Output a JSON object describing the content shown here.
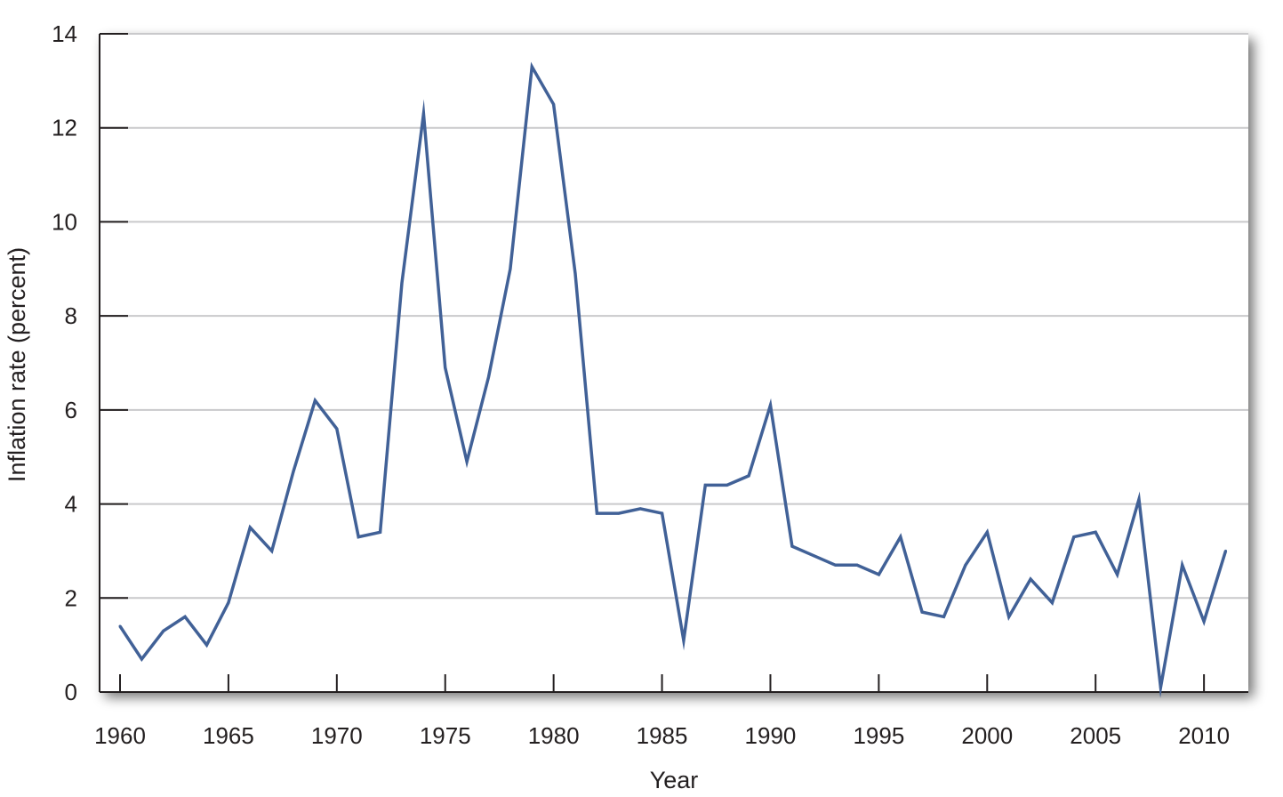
{
  "chart_data": {
    "type": "line",
    "title": "",
    "xlabel": "Year",
    "ylabel": "Inflation rate (percent)",
    "xlim": [
      1960,
      2011
    ],
    "ylim": [
      0,
      14
    ],
    "x_ticks": [
      1960,
      1965,
      1970,
      1975,
      1980,
      1985,
      1990,
      1995,
      2000,
      2005,
      2010
    ],
    "y_ticks": [
      0,
      2,
      4,
      6,
      8,
      10,
      12,
      14
    ],
    "grid": "horizontal",
    "legend": "none",
    "colors": {
      "line": "#416197",
      "grid": "#c9c9cb",
      "axis": "#231f20",
      "plot_background": "#ffffff",
      "shadow": "#888888"
    },
    "series": [
      {
        "x": [
          1960,
          1961,
          1962,
          1963,
          1964,
          1965,
          1966,
          1967,
          1968,
          1969,
          1970,
          1971,
          1972,
          1973,
          1974,
          1975,
          1976,
          1977,
          1978,
          1979,
          1980,
          1981,
          1982,
          1983,
          1984,
          1985,
          1986,
          1987,
          1988,
          1989,
          1990,
          1991,
          1992,
          1993,
          1994,
          1995,
          1996,
          1997,
          1998,
          1999,
          2000,
          2001,
          2002,
          2003,
          2004,
          2005,
          2006,
          2007,
          2008,
          2009,
          2010,
          2011
        ],
        "values": [
          1.4,
          0.7,
          1.3,
          1.6,
          1.0,
          1.9,
          3.5,
          3.0,
          4.7,
          6.2,
          5.6,
          3.3,
          3.4,
          8.7,
          12.3,
          6.9,
          4.9,
          6.7,
          9.0,
          13.3,
          12.5,
          8.9,
          3.8,
          3.8,
          3.9,
          3.8,
          1.1,
          4.4,
          4.4,
          4.6,
          6.1,
          3.1,
          2.9,
          2.7,
          2.7,
          2.5,
          3.3,
          1.7,
          1.6,
          2.7,
          3.4,
          1.6,
          2.4,
          1.9,
          3.3,
          3.4,
          2.5,
          4.1,
          0.1,
          2.7,
          1.5,
          3.0
        ]
      }
    ]
  }
}
